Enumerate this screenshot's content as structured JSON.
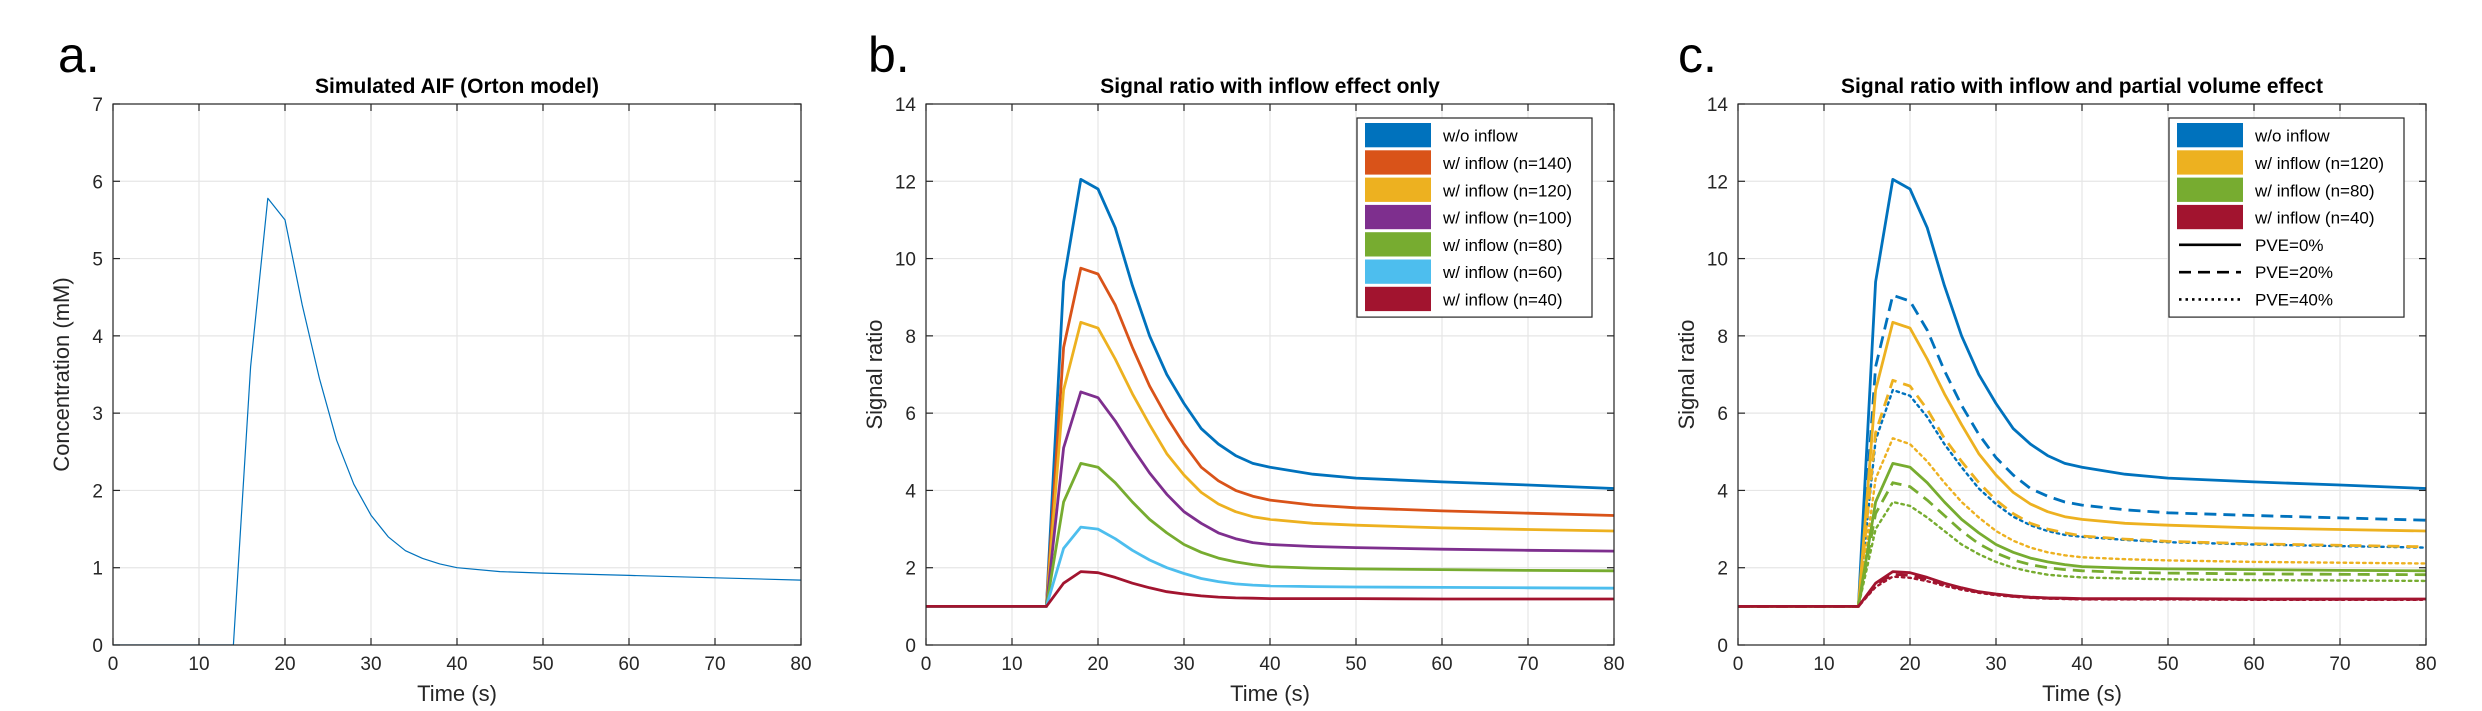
{
  "panels": [
    {
      "letter": "a."
    },
    {
      "letter": "b."
    },
    {
      "letter": "c."
    }
  ],
  "chart_data": [
    {
      "type": "line",
      "title": "Simulated AIF (Orton model)",
      "xlabel": "Time (s)",
      "ylabel": "Concentration (mM)",
      "xlim": [
        0,
        80
      ],
      "ylim": [
        0,
        7
      ],
      "xticks": [
        0,
        10,
        20,
        30,
        40,
        50,
        60,
        70,
        80
      ],
      "yticks": [
        0,
        1,
        2,
        3,
        4,
        5,
        6,
        7
      ],
      "grid": true,
      "series": [
        {
          "color": "#0072BD",
          "style": "solid",
          "width": 1.2,
          "x": [
            0,
            14,
            16,
            18,
            20,
            22,
            24,
            26,
            28,
            30,
            32,
            34,
            36,
            38,
            40,
            45,
            50,
            60,
            70,
            80
          ],
          "y": [
            0,
            0,
            3.6,
            5.78,
            5.5,
            4.4,
            3.45,
            2.65,
            2.08,
            1.68,
            1.4,
            1.22,
            1.12,
            1.05,
            1.0,
            0.95,
            0.93,
            0.9,
            0.87,
            0.84
          ]
        }
      ]
    },
    {
      "type": "line",
      "title": "Signal ratio with inflow effect only",
      "xlabel": "Time (s)",
      "ylabel": "Signal ratio",
      "xlim": [
        0,
        80
      ],
      "ylim": [
        0,
        14
      ],
      "xticks": [
        0,
        10,
        20,
        30,
        40,
        50,
        60,
        70,
        80
      ],
      "yticks": [
        0,
        2,
        4,
        6,
        8,
        10,
        12,
        14
      ],
      "grid": true,
      "legend_position": "top-right",
      "series": [
        {
          "name": "w/o inflow",
          "color": "#0072BD",
          "style": "solid",
          "x": [
            0,
            14,
            16,
            18,
            20,
            22,
            24,
            26,
            28,
            30,
            32,
            34,
            36,
            38,
            40,
            45,
            50,
            60,
            70,
            80
          ],
          "y": [
            1,
            1,
            9.4,
            12.05,
            11.8,
            10.8,
            9.3,
            8.0,
            7.0,
            6.25,
            5.6,
            5.2,
            4.9,
            4.7,
            4.6,
            4.42,
            4.32,
            4.22,
            4.14,
            4.05
          ]
        },
        {
          "name": "w/ inflow (n=140)",
          "color": "#D95319",
          "style": "solid",
          "x": [
            0,
            14,
            16,
            18,
            20,
            22,
            24,
            26,
            28,
            30,
            32,
            34,
            36,
            38,
            40,
            45,
            50,
            60,
            70,
            80
          ],
          "y": [
            1,
            1,
            7.7,
            9.75,
            9.6,
            8.8,
            7.7,
            6.7,
            5.9,
            5.2,
            4.6,
            4.25,
            4.0,
            3.85,
            3.75,
            3.62,
            3.55,
            3.47,
            3.41,
            3.35
          ]
        },
        {
          "name": "w/ inflow (n=120)",
          "color": "#EDB120",
          "style": "solid",
          "x": [
            0,
            14,
            16,
            18,
            20,
            22,
            24,
            26,
            28,
            30,
            32,
            34,
            36,
            38,
            40,
            45,
            50,
            60,
            70,
            80
          ],
          "y": [
            1,
            1,
            6.6,
            8.35,
            8.2,
            7.4,
            6.5,
            5.7,
            4.95,
            4.4,
            3.95,
            3.65,
            3.45,
            3.32,
            3.25,
            3.15,
            3.1,
            3.03,
            2.99,
            2.95
          ]
        },
        {
          "name": "w/ inflow (n=100)",
          "color": "#7E2F8E",
          "style": "solid",
          "x": [
            0,
            14,
            16,
            18,
            20,
            22,
            24,
            26,
            28,
            30,
            32,
            34,
            36,
            38,
            40,
            45,
            50,
            60,
            70,
            80
          ],
          "y": [
            1,
            1,
            5.1,
            6.55,
            6.4,
            5.8,
            5.1,
            4.45,
            3.9,
            3.45,
            3.15,
            2.9,
            2.75,
            2.65,
            2.6,
            2.55,
            2.52,
            2.48,
            2.45,
            2.43
          ]
        },
        {
          "name": "w/ inflow (n=80)",
          "color": "#77AC30",
          "style": "solid",
          "x": [
            0,
            14,
            16,
            18,
            20,
            22,
            24,
            26,
            28,
            30,
            32,
            34,
            36,
            38,
            40,
            45,
            50,
            60,
            70,
            80
          ],
          "y": [
            1,
            1,
            3.7,
            4.7,
            4.6,
            4.2,
            3.7,
            3.25,
            2.9,
            2.6,
            2.4,
            2.25,
            2.15,
            2.08,
            2.03,
            1.99,
            1.97,
            1.95,
            1.93,
            1.92
          ]
        },
        {
          "name": "w/ inflow (n=60)",
          "color": "#4DBEEE",
          "style": "solid",
          "x": [
            0,
            14,
            16,
            18,
            20,
            22,
            24,
            26,
            28,
            30,
            32,
            34,
            36,
            38,
            40,
            45,
            50,
            60,
            70,
            80
          ],
          "y": [
            1,
            1,
            2.5,
            3.05,
            3.0,
            2.75,
            2.45,
            2.2,
            2.0,
            1.85,
            1.72,
            1.64,
            1.58,
            1.55,
            1.53,
            1.51,
            1.5,
            1.49,
            1.48,
            1.47
          ]
        },
        {
          "name": "w/ inflow (n=40)",
          "color": "#A2142F",
          "style": "solid",
          "x": [
            0,
            14,
            16,
            18,
            20,
            22,
            24,
            26,
            28,
            30,
            32,
            34,
            36,
            38,
            40,
            45,
            50,
            60,
            70,
            80
          ],
          "y": [
            1,
            1,
            1.6,
            1.9,
            1.87,
            1.75,
            1.6,
            1.48,
            1.38,
            1.32,
            1.27,
            1.24,
            1.22,
            1.21,
            1.2,
            1.2,
            1.2,
            1.19,
            1.19,
            1.19
          ]
        }
      ]
    },
    {
      "type": "line",
      "title": "Signal ratio with inflow and partial volume effect",
      "xlabel": "Time (s)",
      "ylabel": "Signal ratio",
      "xlim": [
        0,
        80
      ],
      "ylim": [
        0,
        14
      ],
      "xticks": [
        0,
        10,
        20,
        30,
        40,
        50,
        60,
        70,
        80
      ],
      "yticks": [
        0,
        2,
        4,
        6,
        8,
        10,
        12,
        14
      ],
      "grid": true,
      "legend_position": "top-right",
      "legend_colors": [
        {
          "name": "w/o inflow",
          "color": "#0072BD"
        },
        {
          "name": "w/ inflow (n=120)",
          "color": "#EDB120"
        },
        {
          "name": "w/ inflow (n=80)",
          "color": "#77AC30"
        },
        {
          "name": "w/ inflow (n=40)",
          "color": "#A2142F"
        }
      ],
      "legend_styles": [
        {
          "name": "PVE=0%",
          "style": "solid"
        },
        {
          "name": "PVE=20%",
          "style": "dashed"
        },
        {
          "name": "PVE=40%",
          "style": "dotted"
        }
      ],
      "series": [
        {
          "color": "#0072BD",
          "style": "solid",
          "x": [
            0,
            14,
            16,
            18,
            20,
            22,
            24,
            26,
            28,
            30,
            32,
            34,
            36,
            38,
            40,
            45,
            50,
            60,
            70,
            80
          ],
          "y": [
            1,
            1,
            9.4,
            12.05,
            11.8,
            10.8,
            9.3,
            8.0,
            7.0,
            6.25,
            5.6,
            5.2,
            4.9,
            4.7,
            4.6,
            4.42,
            4.32,
            4.22,
            4.14,
            4.05
          ]
        },
        {
          "color": "#0072BD",
          "style": "dashed",
          "x": [
            0,
            14,
            16,
            18,
            20,
            22,
            24,
            26,
            28,
            30,
            32,
            34,
            36,
            38,
            40,
            45,
            50,
            60,
            70,
            80
          ],
          "y": [
            1,
            1,
            7.2,
            9.05,
            8.9,
            8.15,
            7.1,
            6.2,
            5.45,
            4.85,
            4.4,
            4.05,
            3.85,
            3.7,
            3.62,
            3.5,
            3.42,
            3.35,
            3.29,
            3.23
          ]
        },
        {
          "color": "#0072BD",
          "style": "dotted",
          "x": [
            0,
            14,
            16,
            18,
            20,
            22,
            24,
            26,
            28,
            30,
            32,
            34,
            36,
            38,
            40,
            45,
            50,
            60,
            70,
            80
          ],
          "y": [
            1,
            1,
            5.3,
            6.6,
            6.45,
            5.9,
            5.2,
            4.6,
            4.05,
            3.65,
            3.32,
            3.1,
            2.95,
            2.85,
            2.8,
            2.72,
            2.66,
            2.6,
            2.56,
            2.52
          ]
        },
        {
          "color": "#EDB120",
          "style": "solid",
          "x": [
            0,
            14,
            16,
            18,
            20,
            22,
            24,
            26,
            28,
            30,
            32,
            34,
            36,
            38,
            40,
            45,
            50,
            60,
            70,
            80
          ],
          "y": [
            1,
            1,
            6.6,
            8.35,
            8.2,
            7.4,
            6.5,
            5.7,
            4.95,
            4.4,
            3.95,
            3.65,
            3.45,
            3.32,
            3.25,
            3.15,
            3.1,
            3.03,
            2.99,
            2.95
          ]
        },
        {
          "color": "#EDB120",
          "style": "dashed",
          "x": [
            0,
            14,
            16,
            18,
            20,
            22,
            24,
            26,
            28,
            30,
            32,
            34,
            36,
            38,
            40,
            45,
            50,
            60,
            70,
            80
          ],
          "y": [
            1,
            1,
            5.5,
            6.85,
            6.7,
            6.1,
            5.35,
            4.75,
            4.2,
            3.75,
            3.4,
            3.15,
            3.0,
            2.9,
            2.82,
            2.74,
            2.68,
            2.62,
            2.58,
            2.54
          ]
        },
        {
          "color": "#EDB120",
          "style": "dotted",
          "x": [
            0,
            14,
            16,
            18,
            20,
            22,
            24,
            26,
            28,
            30,
            32,
            34,
            36,
            38,
            40,
            45,
            50,
            60,
            70,
            80
          ],
          "y": [
            1,
            1,
            4.3,
            5.35,
            5.2,
            4.75,
            4.2,
            3.7,
            3.3,
            2.95,
            2.7,
            2.52,
            2.4,
            2.32,
            2.27,
            2.22,
            2.19,
            2.15,
            2.13,
            2.11
          ]
        },
        {
          "color": "#77AC30",
          "style": "solid",
          "x": [
            0,
            14,
            16,
            18,
            20,
            22,
            24,
            26,
            28,
            30,
            32,
            34,
            36,
            38,
            40,
            45,
            50,
            60,
            70,
            80
          ],
          "y": [
            1,
            1,
            3.7,
            4.7,
            4.6,
            4.2,
            3.7,
            3.25,
            2.9,
            2.6,
            2.4,
            2.25,
            2.15,
            2.08,
            2.03,
            1.99,
            1.97,
            1.95,
            1.93,
            1.92
          ]
        },
        {
          "color": "#77AC30",
          "style": "dashed",
          "x": [
            0,
            14,
            16,
            18,
            20,
            22,
            24,
            26,
            28,
            30,
            32,
            34,
            36,
            38,
            40,
            45,
            50,
            60,
            70,
            80
          ],
          "y": [
            1,
            1,
            3.4,
            4.2,
            4.1,
            3.75,
            3.35,
            2.95,
            2.62,
            2.38,
            2.2,
            2.08,
            2.0,
            1.95,
            1.92,
            1.88,
            1.86,
            1.84,
            1.83,
            1.82
          ]
        },
        {
          "color": "#77AC30",
          "style": "dotted",
          "x": [
            0,
            14,
            16,
            18,
            20,
            22,
            24,
            26,
            28,
            30,
            32,
            34,
            36,
            38,
            40,
            45,
            50,
            60,
            70,
            80
          ],
          "y": [
            1,
            1,
            3.0,
            3.7,
            3.6,
            3.3,
            2.95,
            2.6,
            2.35,
            2.15,
            2.0,
            1.9,
            1.82,
            1.78,
            1.75,
            1.72,
            1.7,
            1.68,
            1.67,
            1.66
          ]
        },
        {
          "color": "#A2142F",
          "style": "solid",
          "x": [
            0,
            14,
            16,
            18,
            20,
            22,
            24,
            26,
            28,
            30,
            32,
            34,
            36,
            38,
            40,
            45,
            50,
            60,
            70,
            80
          ],
          "y": [
            1,
            1,
            1.6,
            1.9,
            1.87,
            1.75,
            1.6,
            1.48,
            1.38,
            1.32,
            1.27,
            1.24,
            1.22,
            1.21,
            1.2,
            1.2,
            1.2,
            1.19,
            1.19,
            1.19
          ]
        },
        {
          "color": "#A2142F",
          "style": "dashed",
          "x": [
            0,
            14,
            16,
            18,
            20,
            22,
            24,
            26,
            28,
            30,
            32,
            34,
            36,
            38,
            40,
            45,
            50,
            60,
            70,
            80
          ],
          "y": [
            1,
            1,
            1.55,
            1.83,
            1.8,
            1.7,
            1.57,
            1.46,
            1.37,
            1.31,
            1.26,
            1.23,
            1.21,
            1.2,
            1.19,
            1.19,
            1.19,
            1.18,
            1.18,
            1.18
          ]
        },
        {
          "color": "#A2142F",
          "style": "dotted",
          "x": [
            0,
            14,
            16,
            18,
            20,
            22,
            24,
            26,
            28,
            30,
            32,
            34,
            36,
            38,
            40,
            45,
            50,
            60,
            70,
            80
          ],
          "y": [
            1,
            1,
            1.5,
            1.77,
            1.74,
            1.65,
            1.53,
            1.43,
            1.35,
            1.29,
            1.25,
            1.22,
            1.2,
            1.19,
            1.18,
            1.18,
            1.18,
            1.17,
            1.17,
            1.17
          ]
        }
      ]
    }
  ]
}
